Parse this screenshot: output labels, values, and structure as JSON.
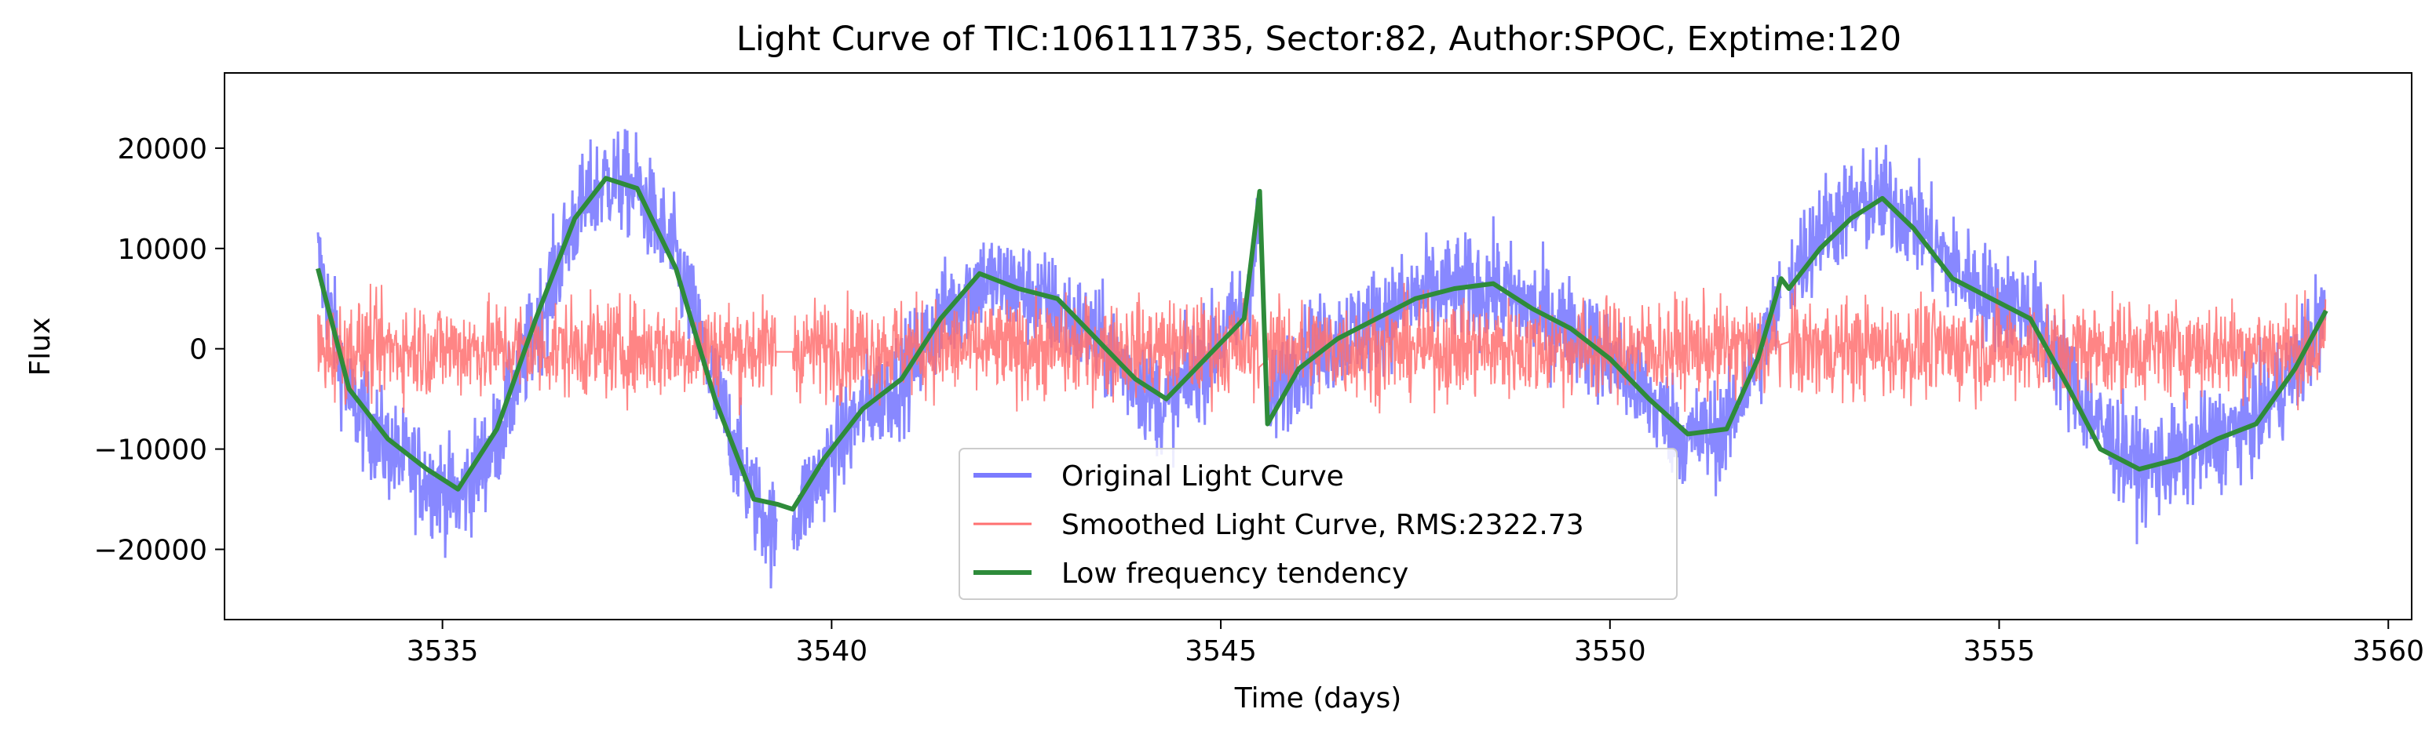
{
  "chart_data": {
    "type": "line",
    "title": "Light Curve of TIC:106111735, Sector:82, Author:SPOC, Exptime:120",
    "xlabel": "Time (days)",
    "ylabel": "Flux",
    "xlim": [
      3532.2,
      3560.3
    ],
    "ylim": [
      -27000,
      27500
    ],
    "x_ticks": [
      3535,
      3540,
      3545,
      3550,
      3555,
      3560
    ],
    "y_ticks": [
      -20000,
      -10000,
      0,
      10000,
      20000
    ],
    "x_tick_labels": [
      "3535",
      "3540",
      "3545",
      "3550",
      "3555",
      "3560"
    ],
    "y_tick_labels": [
      "−20000",
      "−10000",
      "0",
      "10000",
      "20000"
    ],
    "grid": false,
    "legend_position": "lower-center",
    "segments": [
      [
        3533.4,
        3539.3
      ],
      [
        3539.5,
        3545.5
      ],
      [
        3545.6,
        3552.2
      ],
      [
        3552.3,
        3559.2
      ]
    ],
    "series": [
      {
        "name": "Original Light Curve",
        "color": "#7b7bff",
        "style": "thick noisy line",
        "x": [
          3533.4,
          3533.8,
          3534.3,
          3534.8,
          3535.2,
          3535.7,
          3536.2,
          3536.7,
          3537.1,
          3537.5,
          3538.0,
          3538.5,
          3539.0,
          3539.3,
          3539.5,
          3539.9,
          3540.4,
          3540.9,
          3541.4,
          3541.9,
          3542.4,
          3542.9,
          3543.4,
          3543.9,
          3544.3,
          3544.8,
          3545.3,
          3545.5,
          3545.6,
          3546.0,
          3546.5,
          3547.0,
          3547.5,
          3548.0,
          3548.5,
          3549.0,
          3549.5,
          3550.0,
          3550.5,
          3551.0,
          3551.5,
          3551.9,
          3552.2,
          3552.3,
          3552.7,
          3553.1,
          3553.5,
          3553.9,
          3554.4,
          3554.9,
          3555.4,
          3555.9,
          3556.3,
          3556.8,
          3557.3,
          3557.8,
          3558.3,
          3558.8,
          3559.2
        ],
        "y": [
          9000,
          -5000,
          -10000,
          -13000,
          -15000,
          -9000,
          2000,
          13000,
          17000,
          16000,
          9000,
          -4000,
          -15000,
          -19000,
          -17000,
          -12000,
          -6000,
          -3000,
          3000,
          7000,
          6000,
          4000,
          1000,
          -3000,
          -6000,
          -1000,
          4000,
          12000,
          -6000,
          -1000,
          1000,
          3000,
          5000,
          6000,
          6000,
          4000,
          2000,
          -1000,
          -5000,
          -9000,
          -8000,
          -1000,
          5000,
          7000,
          12000,
          14000,
          15000,
          13000,
          8000,
          5000,
          4000,
          -3000,
          -8000,
          -12000,
          -11000,
          -9000,
          -7000,
          -2000,
          4000
        ]
      },
      {
        "name": "Smoothed Light Curve, RMS:2322.73",
        "color": "#ff7070",
        "style": "thin noisy line around zero",
        "rms": 2322.73,
        "x": [
          3533.4,
          3539.3,
          3539.5,
          3545.5,
          3545.6,
          3552.2,
          3552.3,
          3559.2
        ],
        "y": [
          0,
          0,
          0,
          0,
          0,
          0,
          0,
          0
        ]
      },
      {
        "name": "Low frequency tendency",
        "color": "#2e8b3a",
        "style": "smooth line",
        "x": [
          3533.4,
          3533.8,
          3534.3,
          3534.8,
          3535.2,
          3535.7,
          3536.2,
          3536.7,
          3537.1,
          3537.5,
          3538.0,
          3538.5,
          3539.0,
          3539.3,
          3539.5,
          3539.9,
          3540.4,
          3540.9,
          3541.4,
          3541.9,
          3542.4,
          3542.9,
          3543.4,
          3543.9,
          3544.3,
          3544.8,
          3545.3,
          3545.5,
          3545.6,
          3546.0,
          3546.5,
          3547.0,
          3547.5,
          3548.0,
          3548.5,
          3549.0,
          3549.5,
          3550.0,
          3550.5,
          3551.0,
          3551.5,
          3551.9,
          3552.2,
          3552.3,
          3552.7,
          3553.1,
          3553.5,
          3553.9,
          3554.4,
          3554.9,
          3555.4,
          3555.9,
          3556.3,
          3556.8,
          3557.3,
          3557.8,
          3558.3,
          3558.8,
          3559.2
        ],
        "y": [
          8000,
          -4000,
          -9000,
          -12000,
          -14000,
          -8000,
          3000,
          13000,
          17000,
          16000,
          8000,
          -5000,
          -15000,
          -15500,
          -16000,
          -11000,
          -6000,
          -3000,
          3000,
          7500,
          6000,
          5000,
          1000,
          -3000,
          -5000,
          -1000,
          3000,
          15700,
          -7500,
          -2000,
          1000,
          3000,
          5000,
          6000,
          6500,
          4000,
          2000,
          -1000,
          -5000,
          -8500,
          -8000,
          -1000,
          7000,
          6000,
          10000,
          13000,
          15000,
          12000,
          7000,
          5000,
          3000,
          -4000,
          -10000,
          -12000,
          -11000,
          -9000,
          -7500,
          -2000,
          3800
        ]
      }
    ]
  }
}
